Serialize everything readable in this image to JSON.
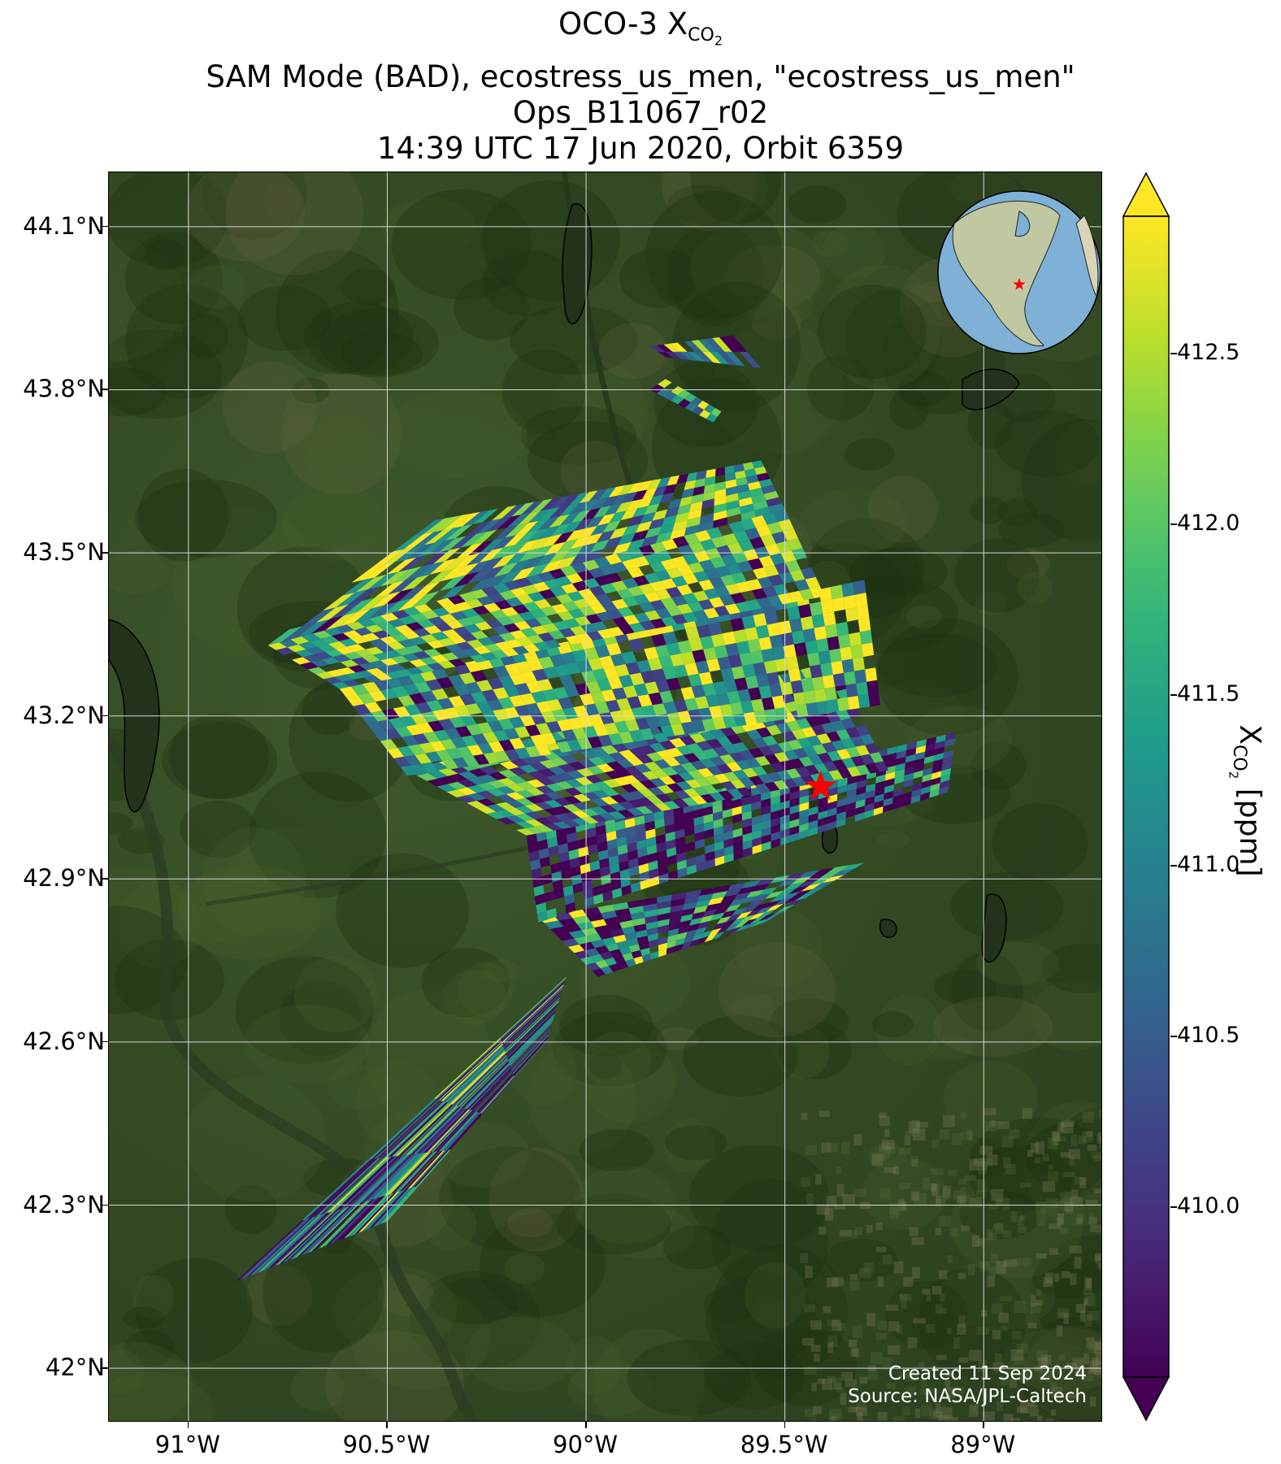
{
  "title": {
    "line1_prefix": "OCO-3 X",
    "line1_sub": "CO",
    "line1_sub2": "2",
    "line2": "SAM Mode (BAD), ecostress_us_men, \"ecostress_us_men\"",
    "line3": "Ops_B11067_r02",
    "line4": "14:39 UTC 17 Jun 2020, Orbit 6359"
  },
  "map": {
    "lon_range": [
      -91.2,
      -88.7
    ],
    "lat_range": [
      41.9,
      44.2
    ],
    "yticks": [
      {
        "lat": 44.1,
        "label": "44.1°N"
      },
      {
        "lat": 43.8,
        "label": "43.8°N"
      },
      {
        "lat": 43.5,
        "label": "43.5°N"
      },
      {
        "lat": 43.2,
        "label": "43.2°N"
      },
      {
        "lat": 42.9,
        "label": "42.9°N"
      },
      {
        "lat": 42.6,
        "label": "42.6°N"
      },
      {
        "lat": 42.3,
        "label": "42.3°N"
      },
      {
        "lat": 42.0,
        "label": "42°N"
      }
    ],
    "xticks": [
      {
        "lon": -91.0,
        "label": "91°W"
      },
      {
        "lon": -90.5,
        "label": "90.5°W"
      },
      {
        "lon": -90.0,
        "label": "90°W"
      },
      {
        "lon": -89.5,
        "label": "89.5°W"
      },
      {
        "lon": -89.0,
        "label": "89°W"
      }
    ],
    "target": {
      "lon": -89.41,
      "lat": 43.07,
      "marker": "red-star",
      "color": "#ff0000"
    },
    "credit_line1": "Created 11 Sep 2024",
    "credit_line2": "Source: NASA/JPL-Caltech"
  },
  "colorbar": {
    "colormap": "viridis",
    "range": [
      409.5,
      412.9
    ],
    "extend": "both",
    "ticks": [
      {
        "value": 412.5,
        "label": "412.5"
      },
      {
        "value": 412.0,
        "label": "412.0"
      },
      {
        "value": 411.5,
        "label": "411.5"
      },
      {
        "value": 411.0,
        "label": "411.0"
      },
      {
        "value": 410.5,
        "label": "410.5"
      },
      {
        "value": 410.0,
        "label": "410.0"
      }
    ],
    "label_prefix": "X",
    "label_sub": "CO",
    "label_sub2": "2",
    "label_suffix": " [ppm]"
  },
  "swaths": [
    {
      "corner_ll": [
        -90.88,
        42.16
      ],
      "corner_lr": [
        -90.5,
        42.27
      ],
      "corner_ul": [
        -90.05,
        42.72
      ],
      "corner_ur": [
        -90.1,
        42.6
      ],
      "rows": 5,
      "cols": 42,
      "bias": 0.35
    },
    {
      "corner_ll": [
        -89.97,
        42.72
      ],
      "corner_lr": [
        -89.55,
        42.82
      ],
      "corner_ul": [
        -90.12,
        42.83
      ],
      "corner_ur": [
        -89.3,
        42.93
      ],
      "rows": 10,
      "cols": 22,
      "bias": 0.35
    },
    {
      "corner_ll": [
        -90.12,
        42.82
      ],
      "corner_lr": [
        -89.09,
        43.06
      ],
      "corner_ul": [
        -90.15,
        42.98
      ],
      "corner_ur": [
        -89.07,
        43.17
      ],
      "rows": 10,
      "cols": 44,
      "bias": 0.3
    },
    {
      "corner_ll": [
        -90.15,
        42.98
      ],
      "corner_lr": [
        -89.24,
        43.1
      ],
      "corner_ul": [
        -90.45,
        43.1
      ],
      "corner_ur": [
        -89.38,
        43.3
      ],
      "rows": 12,
      "cols": 40,
      "bias": 0.5
    },
    {
      "corner_ll": [
        -90.45,
        43.09
      ],
      "corner_lr": [
        -89.26,
        43.22
      ],
      "corner_ul": [
        -90.62,
        43.25
      ],
      "corner_ur": [
        -89.3,
        43.45
      ],
      "rows": 10,
      "cols": 46,
      "bias": 0.62
    },
    {
      "corner_ll": [
        -90.62,
        43.25
      ],
      "corner_lr": [
        -89.4,
        43.42
      ],
      "corner_ul": [
        -90.8,
        43.33
      ],
      "corner_ur": [
        -89.5,
        43.58
      ],
      "rows": 9,
      "cols": 46,
      "bias": 0.62
    },
    {
      "corner_ll": [
        -90.8,
        43.33
      ],
      "corner_lr": [
        -89.5,
        43.58
      ],
      "corner_ul": [
        -90.38,
        43.56
      ],
      "corner_ur": [
        -89.56,
        43.67
      ],
      "rows": 8,
      "cols": 36,
      "bias": 0.6
    },
    {
      "corner_ll": [
        -89.8,
        43.86
      ],
      "corner_lr": [
        -89.56,
        43.84
      ],
      "corner_ul": [
        -89.84,
        43.88
      ],
      "corner_ur": [
        -89.63,
        43.9
      ],
      "rows": 2,
      "cols": 12,
      "bias": 0.55
    },
    {
      "corner_ll": [
        -89.84,
        43.8
      ],
      "corner_lr": [
        -89.68,
        43.74
      ],
      "corner_ul": [
        -89.8,
        43.82
      ],
      "corner_ur": [
        -89.66,
        43.76
      ],
      "rows": 2,
      "cols": 9,
      "bias": 0.6
    }
  ]
}
